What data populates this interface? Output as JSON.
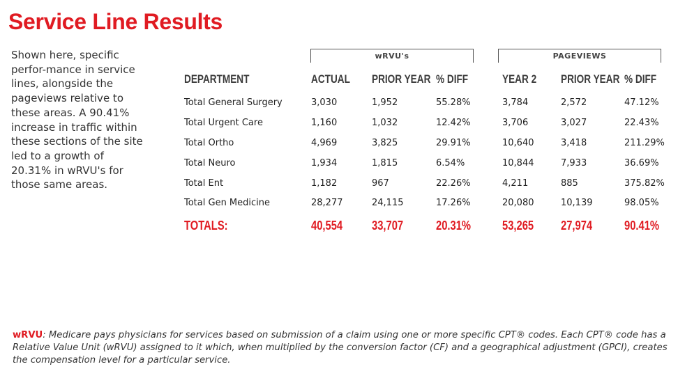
{
  "title": "Service Line Results",
  "intro": "Shown here, specific perfor-mance in service lines, alongside the pageviews relative to these areas. A 90.41% increase in traffic within these sections of the site led to a growth of 20.31% in wRVU's for those same areas.",
  "groups": {
    "wrvu": "wRVU's",
    "pageviews": "PAGEVIEWS"
  },
  "headers": [
    "DEPARTMENT",
    "ACTUAL",
    "PRIOR YEAR",
    "% DIFF",
    "YEAR 2",
    "PRIOR YEAR",
    "% DIFF"
  ],
  "rows": [
    [
      "Total General Surgery",
      "3,030",
      "1,952",
      "55.28%",
      "3,784",
      "2,572",
      "47.12%"
    ],
    [
      "Total Urgent Care",
      "1,160",
      "1,032",
      "12.42%",
      "3,706",
      "3,027",
      "22.43%"
    ],
    [
      "Total Ortho",
      "4,969",
      "3,825",
      "29.91%",
      "10,640",
      "3,418",
      "211.29%"
    ],
    [
      "Total Neuro",
      "1,934",
      "1,815",
      "6.54%",
      "10,844",
      "7,933",
      "36.69%"
    ],
    [
      "Total Ent",
      "1,182",
      "967",
      "22.26%",
      "4,211",
      "885",
      "375.82%"
    ],
    [
      "Total Gen Medicine",
      "28,277",
      "24,115",
      "17.26%",
      "20,080",
      "10,139",
      "98.05%"
    ]
  ],
  "totals": [
    "TOTALS:",
    "40,554",
    "33,707",
    "20.31%",
    "53,265",
    "27,974",
    "90.41%"
  ],
  "footnote": {
    "term": "wRVU",
    "text": ": Medicare pays physicians for services based on submission of a claim using one or more specific CPT® codes. Each CPT® code has a Relative Value Unit (wRVU) assigned to it which, when multiplied by the conversion factor (CF) and a geographical adjustment (GPCI), creates the compensation level for a particular service."
  },
  "colors": {
    "accent": "#e01b22",
    "text": "#333333",
    "header": "#3c3c3c"
  }
}
